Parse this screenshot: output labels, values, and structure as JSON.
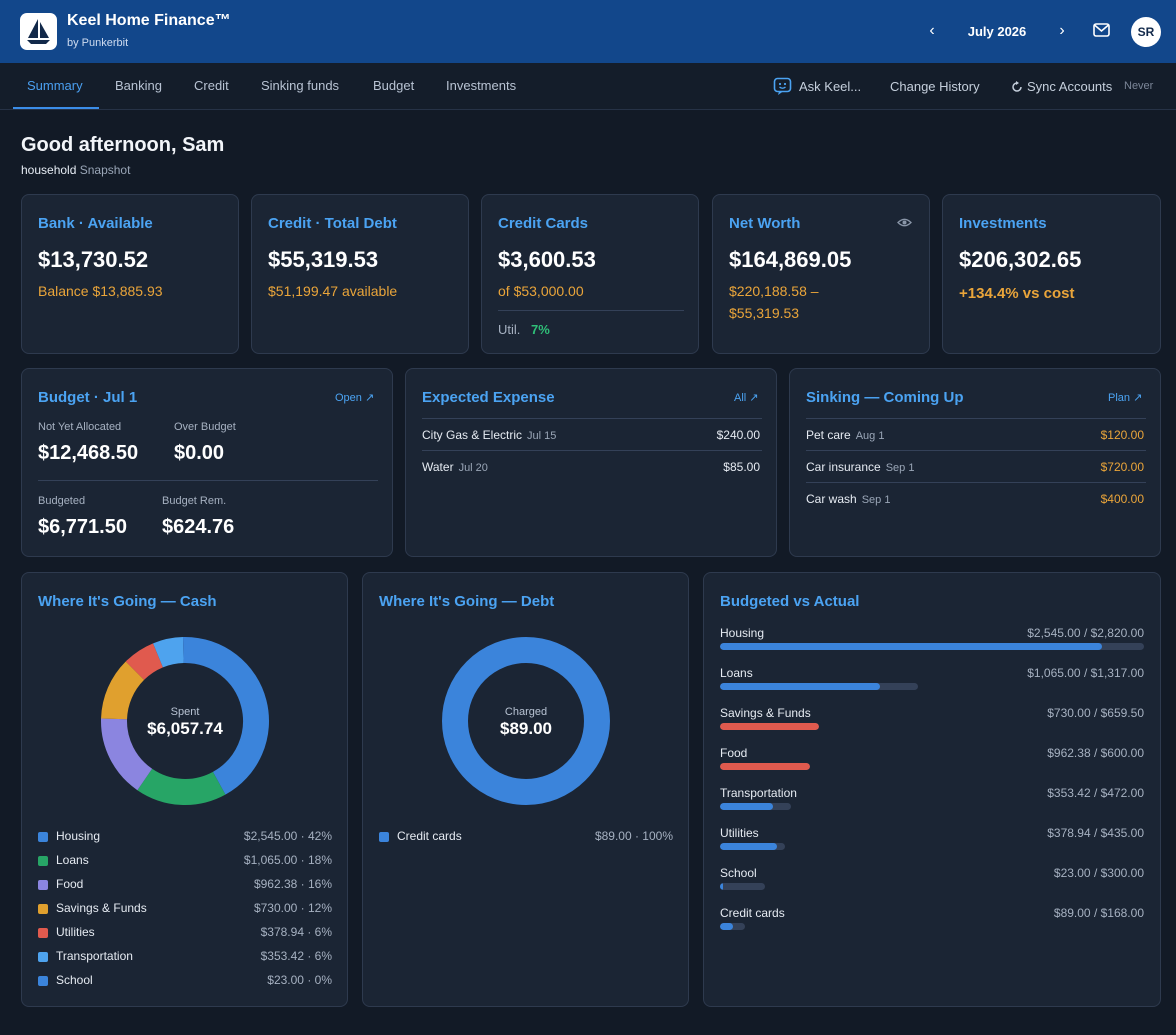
{
  "header": {
    "brand_title": "Keel Home Finance™",
    "brand_sub": "by Punkerbit",
    "month": "July 2026",
    "prev_icon": "chevron-left-icon",
    "next_icon": "chevron-right-icon",
    "prev_glyph": "‹",
    "next_glyph": "›",
    "mail_icon": "mail-icon",
    "avatar": "SR",
    "colors": {
      "bar": "#12478b"
    }
  },
  "nav": {
    "tabs": [
      {
        "label": "Summary",
        "active": true
      },
      {
        "label": "Banking"
      },
      {
        "label": "Credit"
      },
      {
        "label": "Sinking funds"
      },
      {
        "label": "Budget"
      },
      {
        "label": "Investments"
      }
    ],
    "ask": "Ask Keel...",
    "history": "Change History",
    "sync": "Sync Accounts",
    "sync_status": "Never"
  },
  "greeting": {
    "title": "Good afternoon, Sam",
    "scope": "household",
    "scope_suffix": "Snapshot"
  },
  "cards": {
    "bank": {
      "title": "Bank · Available",
      "value": "$13,730.52",
      "sub": "Balance $13,885.93"
    },
    "credit": {
      "title": "Credit · Total Debt",
      "value": "$55,319.53",
      "sub": "$51,199.47 available"
    },
    "credit_cards": {
      "title": "Credit Cards",
      "value": "$3,600.53",
      "sub": "of $53,000.00",
      "util_label": "Util.",
      "util_value": "7%"
    },
    "net_worth": {
      "title": "Net Worth",
      "value": "$164,869.05",
      "sub_line1": "$220,188.58 –",
      "sub_line2": "$55,319.53",
      "eye_icon": "eye-icon"
    },
    "investments": {
      "title": "Investments",
      "value": "$206,302.65",
      "sub": "+134.4% vs cost"
    }
  },
  "budget_card": {
    "title": "Budget · Jul 1",
    "link": "Open ↗",
    "not_alloc_label": "Not Yet Allocated",
    "not_alloc_value": "$12,468.50",
    "over_label": "Over Budget",
    "over_value": "$0.00",
    "budgeted_label": "Budgeted",
    "budgeted_value": "$6,771.50",
    "rem_label": "Budget Rem.",
    "rem_value": "$624.76"
  },
  "expected": {
    "title": "Expected Expense",
    "link": "All ↗",
    "rows": [
      {
        "name": "City Gas & Electric",
        "date": "Jul 15",
        "amount": "$240.00"
      },
      {
        "name": "Water",
        "date": "Jul 20",
        "amount": "$85.00"
      }
    ]
  },
  "sinking": {
    "title": "Sinking — Coming Up",
    "link": "Plan ↗",
    "rows": [
      {
        "name": "Pet care",
        "date": "Aug 1",
        "amount": "$120.00"
      },
      {
        "name": "Car insurance",
        "date": "Sep 1",
        "amount": "$720.00"
      },
      {
        "name": "Car wash",
        "date": "Sep 1",
        "amount": "$400.00"
      }
    ]
  },
  "cash_chart": {
    "title": "Where It's Going — Cash",
    "center_label": "Spent",
    "center_value": "$6,057.74",
    "legend": [
      {
        "name": "Housing",
        "value": "$2,545.00 · 42%",
        "color": "#3b84db"
      },
      {
        "name": "Loans",
        "value": "$1,065.00 · 18%",
        "color": "#27a566"
      },
      {
        "name": "Food",
        "value": "$962.38 · 16%",
        "color": "#8b85e0"
      },
      {
        "name": "Savings & Funds",
        "value": "$730.00 · 12%",
        "color": "#e0a02e"
      },
      {
        "name": "Utilities",
        "value": "$378.94 · 6%",
        "color": "#e05a4e"
      },
      {
        "name": "Transportation",
        "value": "$353.42 · 6%",
        "color": "#4ea3ee"
      },
      {
        "name": "School",
        "value": "$23.00 · 0%",
        "color": "#3b84db"
      }
    ]
  },
  "debt_chart": {
    "title": "Where It's Going — Debt",
    "center_label": "Charged",
    "center_value": "$89.00",
    "legend": [
      {
        "name": "Credit cards",
        "value": "$89.00 · 100%",
        "color": "#3b84db"
      }
    ]
  },
  "bva": {
    "title": "Budgeted vs Actual",
    "rows": [
      {
        "name": "Housing",
        "amount": "$2,545.00 / $2,820.00",
        "fill": 0.9,
        "track": 1.0,
        "color": "#3b84db"
      },
      {
        "name": "Loans",
        "amount": "$1,065.00 / $1,317.00",
        "fill": 0.81,
        "track": 0.467,
        "color": "#3b84db"
      },
      {
        "name": "Savings & Funds",
        "amount": "$730.00 / $659.50",
        "fill": 1.0,
        "track": 0.234,
        "color": "#e05a4e"
      },
      {
        "name": "Food",
        "amount": "$962.38 / $600.00",
        "fill": 1.0,
        "track": 0.213,
        "color": "#e05a4e"
      },
      {
        "name": "Transportation",
        "amount": "$353.42 / $472.00",
        "fill": 0.75,
        "track": 0.167,
        "color": "#3b84db"
      },
      {
        "name": "Utilities",
        "amount": "$378.94 / $435.00",
        "fill": 0.87,
        "track": 0.154,
        "color": "#3b84db"
      },
      {
        "name": "School",
        "amount": "$23.00 / $300.00",
        "fill": 0.077,
        "track": 0.106,
        "color": "#3b84db"
      },
      {
        "name": "Credit cards",
        "amount": "$89.00 / $168.00",
        "fill": 0.53,
        "track": 0.06,
        "color": "#3b84db"
      }
    ]
  },
  "chart_data": [
    {
      "type": "pie",
      "title": "Where It's Going — Cash",
      "categories": [
        "Housing",
        "Loans",
        "Food",
        "Savings & Funds",
        "Utilities",
        "Transportation",
        "School"
      ],
      "values": [
        2545.0,
        1065.0,
        962.38,
        730.0,
        378.94,
        353.42,
        23.0
      ],
      "colors": [
        "#3b84db",
        "#27a566",
        "#8b85e0",
        "#e0a02e",
        "#e05a4e",
        "#4ea3ee",
        "#3b84db"
      ]
    },
    {
      "type": "pie",
      "title": "Where It's Going — Debt",
      "categories": [
        "Credit cards"
      ],
      "values": [
        89.0
      ],
      "colors": [
        "#3b84db"
      ]
    },
    {
      "type": "bar",
      "title": "Budgeted vs Actual",
      "categories": [
        "Housing",
        "Loans",
        "Savings & Funds",
        "Food",
        "Transportation",
        "Utilities",
        "School",
        "Credit cards"
      ],
      "series": [
        {
          "name": "Actual",
          "values": [
            2545.0,
            1065.0,
            730.0,
            962.38,
            353.42,
            378.94,
            23.0,
            89.0
          ]
        },
        {
          "name": "Budgeted",
          "values": [
            2820.0,
            1317.0,
            659.5,
            600.0,
            472.0,
            435.0,
            300.0,
            168.0
          ]
        }
      ]
    }
  ]
}
